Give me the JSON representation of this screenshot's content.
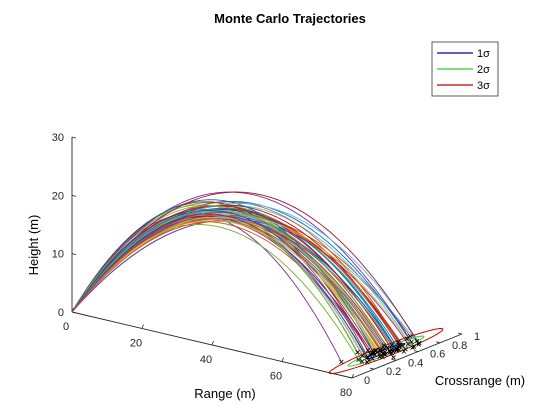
{
  "chart_data": {
    "type": "line",
    "projection": "3d",
    "title": "Monte Carlo Trajectories",
    "xlabel": "Range (m)",
    "ylabel": "Crossrange (m)",
    "zlabel": "Height (m)",
    "xlim": [
      0,
      80
    ],
    "ylim": [
      0,
      1
    ],
    "zlim": [
      0,
      30
    ],
    "x_ticks": [
      "0",
      "20",
      "40",
      "60",
      "80"
    ],
    "y_ticks": [
      "0",
      "0.2",
      "0.4",
      "0.6",
      "0.8",
      "1"
    ],
    "z_ticks": [
      "0",
      "10",
      "20",
      "30"
    ],
    "grid": false,
    "legend_position": "top-right",
    "series": [
      {
        "name": "1σ",
        "color": "#0000a0",
        "kind": "ellipse"
      },
      {
        "name": "2σ",
        "color": "#33cc33",
        "kind": "ellipse"
      },
      {
        "name": "3σ",
        "color": "#cc0000",
        "kind": "ellipse"
      }
    ],
    "trajectory_summary": {
      "approx_count": 60,
      "landing_range_center": 74,
      "landing_crossrange_center": 0.5,
      "apex_height_min": 18,
      "apex_height_max": 23
    },
    "trajectory_colors": [
      "#0072bd",
      "#d95319",
      "#edb120",
      "#7e2f8e",
      "#77ac30",
      "#4dbeee",
      "#a2142f"
    ]
  }
}
